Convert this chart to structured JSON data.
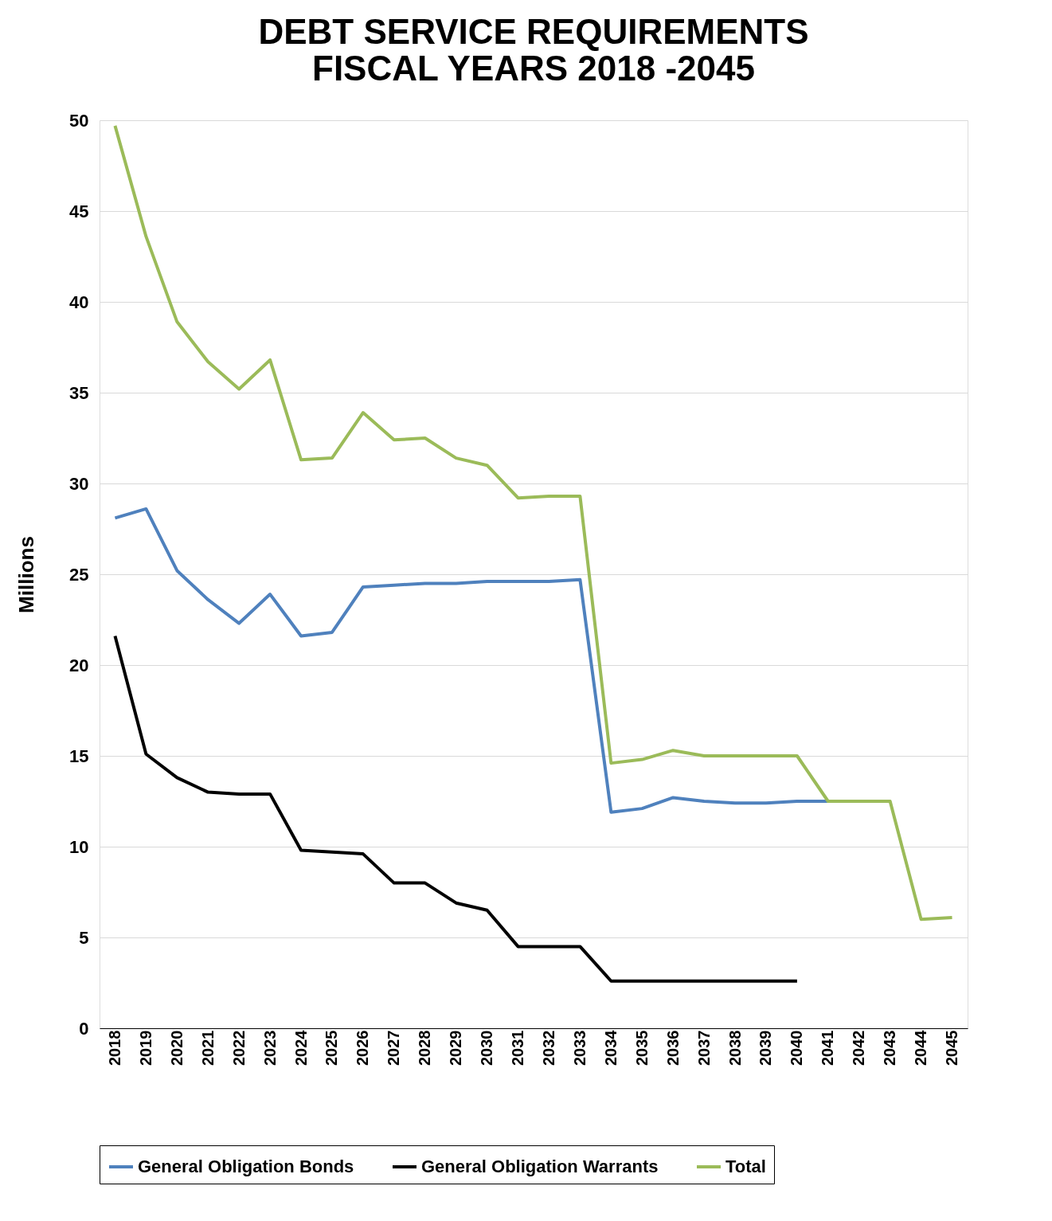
{
  "chart_data": {
    "type": "line",
    "title": [
      "DEBT SERVICE REQUIREMENTS",
      "FISCAL YEARS 2018 -2045"
    ],
    "ylabel": "Millions",
    "categories": [
      "2018",
      "2019",
      "2020",
      "2021",
      "2022",
      "2023",
      "2024",
      "2025",
      "2026",
      "2027",
      "2028",
      "2029",
      "2030",
      "2031",
      "2032",
      "2033",
      "2034",
      "2035",
      "2036",
      "2037",
      "2038",
      "2039",
      "2040",
      "2041",
      "2042",
      "2043",
      "2044",
      "2045"
    ],
    "series": [
      {
        "name": "General Obligation Bonds",
        "color": "#4f81bd",
        "values": [
          28.1,
          28.6,
          25.2,
          23.6,
          22.3,
          23.9,
          21.6,
          21.8,
          24.3,
          24.4,
          24.5,
          24.5,
          24.6,
          24.6,
          24.6,
          24.7,
          11.9,
          12.1,
          12.7,
          12.5,
          12.4,
          12.4,
          12.5,
          12.5,
          null,
          null,
          null,
          null
        ]
      },
      {
        "name": "General Obligation Warrants",
        "color": "#000000",
        "values": [
          21.6,
          15.1,
          13.8,
          13.0,
          12.9,
          12.9,
          9.8,
          9.7,
          9.6,
          8.0,
          8.0,
          6.9,
          6.5,
          4.5,
          4.5,
          4.5,
          2.6,
          2.6,
          2.6,
          2.6,
          2.6,
          2.6,
          2.6,
          null,
          null,
          null,
          null,
          null
        ]
      },
      {
        "name": "Total",
        "color": "#9bbb59",
        "values": [
          49.7,
          43.6,
          38.9,
          36.7,
          35.2,
          36.8,
          31.3,
          31.4,
          33.9,
          32.4,
          32.5,
          31.4,
          31.0,
          29.2,
          29.3,
          29.3,
          14.6,
          14.8,
          15.3,
          15.0,
          15.0,
          15.0,
          15.0,
          12.5,
          12.5,
          12.5,
          6.0,
          6.1
        ]
      }
    ],
    "ylim": [
      0,
      50
    ],
    "yticks": [
      0,
      5,
      10,
      15,
      20,
      25,
      30,
      35,
      40,
      45,
      50
    ],
    "grid": "y",
    "legend": "bottom",
    "marker": "none",
    "line_style": "solid"
  }
}
